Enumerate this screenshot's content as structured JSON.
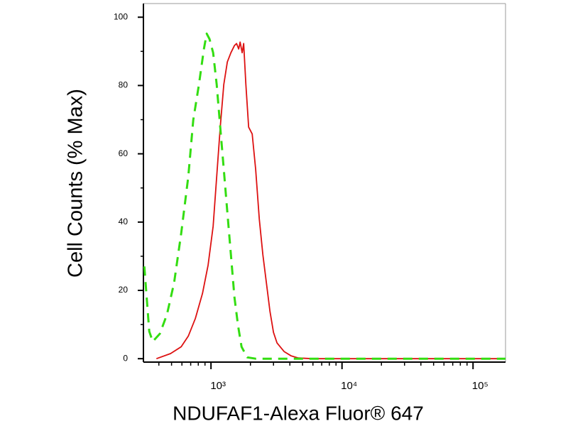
{
  "chart_data": {
    "type": "line",
    "xlabel": "NDUFAF1-Alexa Fluor® 647",
    "ylabel": "Cell Counts (% Max)",
    "xscale": "log",
    "xlim": [
      305,
      177000
    ],
    "ylim": [
      -1,
      104
    ],
    "xticks": [
      {
        "value": 1000,
        "label": "10³"
      },
      {
        "value": 10000,
        "label": "10⁴"
      },
      {
        "value": 100000,
        "label": "10⁵"
      }
    ],
    "xminor_ticks": [
      400,
      500,
      600,
      700,
      800,
      900,
      2000,
      3000,
      4000,
      5000,
      6000,
      7000,
      8000,
      9000,
      20000,
      30000,
      40000,
      50000,
      60000,
      70000,
      80000,
      90000
    ],
    "yticks": [
      0,
      20,
      40,
      60,
      80,
      100
    ],
    "yminor_ticks": [
      10,
      30,
      50,
      70,
      90
    ],
    "series": [
      {
        "color": "#dd1111",
        "dash": false,
        "x": [
          383,
          491,
          592,
          671,
          760,
          861,
          951,
          1038,
          1105,
          1176,
          1252,
          1333,
          1419,
          1510,
          1567,
          1627,
          1668,
          1730,
          1775,
          1845,
          1937,
          2062,
          2194,
          2337,
          2488,
          2647,
          2818,
          2999,
          3192,
          3614,
          4096,
          4641,
          5957,
          177000
        ],
        "values": [
          0,
          1.5,
          3.5,
          6.6,
          11.8,
          19.1,
          27.4,
          38.8,
          53.3,
          67.8,
          80.3,
          86.9,
          89.6,
          91.7,
          92.3,
          90.7,
          92.7,
          89.6,
          92.3,
          80.3,
          67.8,
          65.8,
          55.4,
          40.9,
          30.5,
          22.2,
          13.9,
          7.7,
          4.6,
          2.1,
          0.8,
          0.2,
          0,
          0
        ]
      },
      {
        "color": "#33dd11",
        "dash": true,
        "x": [
          310,
          338,
          359,
          407,
          461,
          523,
          592,
          671,
          732,
          809,
          883,
          927,
          975,
          1038,
          1105,
          1176,
          1252,
          1333,
          1419,
          1510,
          1607,
          1710,
          1890,
          2194,
          177000
        ],
        "values": [
          27,
          8,
          5,
          7.3,
          12.9,
          22.2,
          36.7,
          53.3,
          69.9,
          80.3,
          90.7,
          95.2,
          93.6,
          89.6,
          80.3,
          67.8,
          55.4,
          42.9,
          30.5,
          18.0,
          9.8,
          3.5,
          0.4,
          0,
          0
        ]
      }
    ]
  }
}
